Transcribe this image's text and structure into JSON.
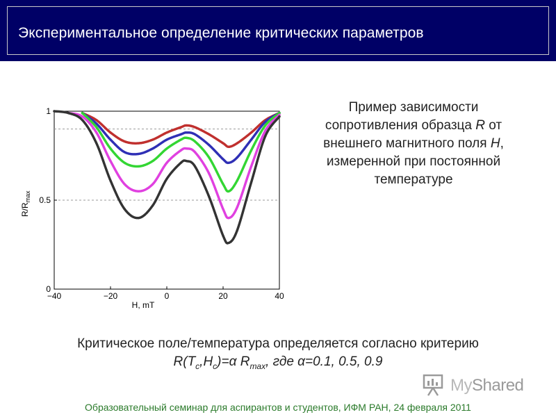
{
  "header": {
    "title": "Экспериментальное определение критических параметров"
  },
  "side_text": {
    "lines": [
      "Пример зависимости",
      "сопротивления образца",
      "внешнего магнитного поля",
      "измеренной при постоянной",
      "температуре"
    ],
    "var_r": "R",
    "var_h": "H",
    "word_ot": "от"
  },
  "bottom_text": {
    "line1": "Критическое поле/температура определяется согласно критерию",
    "formula": {
      "R": "R(T",
      "c1": "c",
      "H": ",H",
      "c2": "c",
      "eq": ")=α R",
      "max": "max",
      "tail": ", где α=0.1, 0.5, 0.9"
    }
  },
  "footer": {
    "text": "Образовательный семинар для аспирантов и студентов, ИФМ РАН, 24 февраля 2011"
  },
  "watermark": {
    "my": "My",
    "shared": "Shared"
  },
  "colors": {
    "header_bg": "#000066",
    "red": "#c0302e",
    "blue": "#2f2fb5",
    "green": "#33d633",
    "magenta": "#e040e0",
    "black": "#333333",
    "footer": "#2a7a2a"
  },
  "chart_data": {
    "type": "scatter",
    "xlabel": "H, mT",
    "ylabel": "R/R",
    "ylabel_sub": "max",
    "xlim": [
      -40,
      40
    ],
    "ylim": [
      0,
      1
    ],
    "xticks": [
      -40,
      -20,
      0,
      20,
      40
    ],
    "yticks": [
      0,
      0.5,
      1
    ],
    "xtick_labels": [
      "−40",
      "−20",
      "0",
      "20",
      "40"
    ],
    "ytick_labels": [
      "0",
      "0.5",
      "1"
    ],
    "reference_lines": [
      0.9,
      0.5
    ],
    "x": [
      -40,
      -35,
      -30,
      -25,
      -20,
      -15,
      -10,
      -5,
      0,
      5,
      7,
      10,
      15,
      20,
      22,
      25,
      30,
      35,
      40
    ],
    "series": [
      {
        "color": "red",
        "values": [
          null,
          null,
          0.99,
          0.95,
          0.88,
          0.83,
          0.82,
          0.84,
          0.88,
          0.91,
          0.92,
          0.91,
          0.87,
          0.82,
          0.8,
          0.82,
          0.88,
          0.95,
          0.99
        ]
      },
      {
        "color": "blue",
        "values": [
          null,
          null,
          0.99,
          0.93,
          0.84,
          0.77,
          0.76,
          0.79,
          0.84,
          0.87,
          0.88,
          0.87,
          0.81,
          0.73,
          0.71,
          0.74,
          0.84,
          0.94,
          0.99
        ]
      },
      {
        "color": "green",
        "values": [
          null,
          null,
          0.99,
          0.91,
          0.79,
          0.71,
          0.69,
          0.72,
          0.79,
          0.84,
          0.85,
          0.83,
          0.74,
          0.59,
          0.55,
          0.61,
          0.78,
          0.92,
          0.99
        ]
      },
      {
        "color": "magenta",
        "values": [
          null,
          0.99,
          0.97,
          0.88,
          0.72,
          0.59,
          0.55,
          0.59,
          0.71,
          0.78,
          0.79,
          0.77,
          0.65,
          0.45,
          0.4,
          0.46,
          0.69,
          0.89,
          0.98
        ]
      },
      {
        "color": "black",
        "values": [
          1.0,
          0.99,
          0.95,
          0.82,
          0.61,
          0.45,
          0.4,
          0.47,
          0.62,
          0.71,
          0.72,
          0.69,
          0.52,
          0.3,
          0.26,
          0.33,
          0.6,
          0.86,
          0.97
        ]
      }
    ]
  }
}
